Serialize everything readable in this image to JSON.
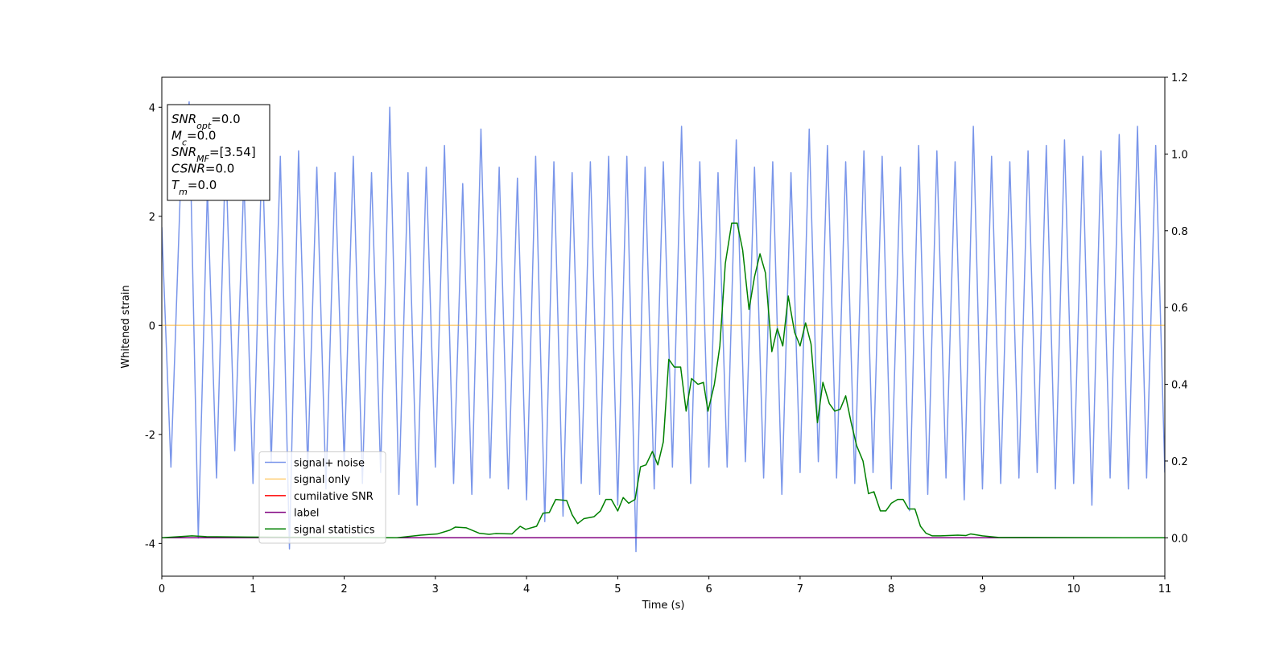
{
  "chart_data": {
    "type": "line",
    "xlabel": "Time (s)",
    "ylabel": "Whitened strain",
    "xlim": [
      0,
      11
    ],
    "xticks": [
      0,
      1,
      2,
      3,
      4,
      5,
      6,
      7,
      8,
      9,
      10,
      11
    ],
    "ylim": [
      -4.6,
      4.55
    ],
    "yticks": [
      -4,
      -2,
      0,
      2,
      4
    ],
    "y2lim": [
      -0.1,
      1.2
    ],
    "y2ticks": [
      {
        "value": 0,
        "label": "0.0"
      },
      0.2,
      0.4,
      0.6,
      0.8,
      {
        "value": 1,
        "label": "1.0"
      },
      1.2
    ],
    "grid": false,
    "legend": "lower left",
    "annotation": [
      {
        "name": "SNR",
        "sub": "opt",
        "text": "=0.0"
      },
      {
        "name": "M",
        "sub": "c",
        "text": "=0.0"
      },
      {
        "name": "SNR",
        "sub": "MF",
        "text": "=[3.54]"
      },
      {
        "name": "CSNR",
        "sub": "",
        "text": "=0.0"
      },
      {
        "name": "T",
        "sub": "m",
        "text": "=0.0"
      }
    ],
    "series": [
      {
        "name": "signal+ noise",
        "color": "royalblue",
        "alpha": 0.7,
        "x": [
          0,
          0.1,
          0.2,
          0.3,
          0.4,
          0.5,
          0.6,
          0.7,
          0.8,
          0.9,
          1,
          1.1,
          1.2,
          1.3,
          1.4,
          1.5,
          1.6,
          1.7,
          1.8,
          1.9,
          2,
          2.1,
          2.2,
          2.3,
          2.4,
          2.5,
          2.6,
          2.7,
          2.8,
          2.9,
          3,
          3.1,
          3.2,
          3.3,
          3.4,
          3.5,
          3.6,
          3.7,
          3.8,
          3.9,
          4,
          4.1,
          4.2,
          4.3,
          4.4,
          4.5,
          4.6,
          4.7,
          4.8,
          4.9,
          5,
          5.1,
          5.2,
          5.3,
          5.4,
          5.5,
          5.6,
          5.7,
          5.8,
          5.9,
          6,
          6.1,
          6.2,
          6.3,
          6.4,
          6.5,
          6.6,
          6.7,
          6.8,
          6.9,
          7,
          7.1,
          7.2,
          7.3,
          7.4,
          7.5,
          7.6,
          7.7,
          7.8,
          7.9,
          8,
          8.1,
          8.2,
          8.3,
          8.4,
          8.5,
          8.6,
          8.7,
          8.8,
          8.9,
          9,
          9.1,
          9.2,
          9.3,
          9.4,
          9.5,
          9.6,
          9.7,
          9.8,
          9.9,
          10,
          10.1,
          10.2,
          10.3,
          10.4,
          10.5,
          10.6,
          10.7,
          10.8,
          10.9,
          11
        ],
        "values": [
          1.8,
          -2.6,
          2.3,
          4.1,
          -3.9,
          2.5,
          -2.8,
          3.2,
          -2.3,
          2.7,
          -2.9,
          3.3,
          -2.5,
          3.1,
          -4.1,
          3.2,
          -2.6,
          2.9,
          -3.0,
          2.8,
          -2.5,
          3.1,
          -2.9,
          2.8,
          -2.7,
          4.0,
          -3.1,
          2.8,
          -3.3,
          2.9,
          -2.6,
          3.3,
          -2.9,
          2.6,
          -3.1,
          3.6,
          -2.8,
          2.9,
          -3.0,
          2.7,
          -3.2,
          3.1,
          -3.6,
          3.0,
          -3.5,
          2.8,
          -2.9,
          3.0,
          -3.1,
          3.1,
          -3.3,
          3.1,
          -4.15,
          2.9,
          -3.0,
          3.0,
          -2.6,
          3.65,
          -2.9,
          3.0,
          -2.6,
          2.8,
          -2.6,
          3.4,
          -2.5,
          2.9,
          -2.8,
          3.0,
          -3.1,
          2.8,
          -2.7,
          3.6,
          -2.5,
          3.3,
          -2.8,
          3.0,
          -2.9,
          3.2,
          -2.7,
          3.1,
          -3.0,
          2.9,
          -3.4,
          3.3,
          -3.1,
          3.2,
          -2.8,
          3.0,
          -3.2,
          3.65,
          -3.0,
          3.1,
          -2.9,
          3.0,
          -2.8,
          3.2,
          -2.7,
          3.3,
          -3.0,
          3.4,
          -2.9,
          3.1,
          -3.3,
          3.2,
          -2.8,
          3.5,
          -3.0,
          3.65,
          -2.8,
          3.3,
          -2.7
        ]
      },
      {
        "name": "signal only",
        "color": "orange",
        "alpha": 0.5,
        "x": [
          0,
          11
        ],
        "values": [
          0,
          0
        ]
      },
      {
        "name": "cumilative SNR",
        "color": "red",
        "alpha": 1,
        "axis": "y2",
        "x": [
          0,
          11
        ],
        "values": [
          0,
          0
        ]
      },
      {
        "name": "label",
        "color": "purple",
        "alpha": 1,
        "axis": "y2",
        "x": [
          0,
          11
        ],
        "values": [
          0,
          0
        ]
      },
      {
        "name": "signal statistics",
        "color": "green",
        "alpha": 1,
        "axis": "y2",
        "x": [
          0,
          0.33,
          0.49,
          0.94,
          2.57,
          2.84,
          3.02,
          3.16,
          3.22,
          3.34,
          3.48,
          3.59,
          3.66,
          3.84,
          3.93,
          3.99,
          4.11,
          4.18,
          4.25,
          4.32,
          4.44,
          4.5,
          4.56,
          4.63,
          4.74,
          4.81,
          4.87,
          4.93,
          5.0,
          5.06,
          5.12,
          5.19,
          5.25,
          5.31,
          5.38,
          5.44,
          5.5,
          5.56,
          5.62,
          5.69,
          5.75,
          5.81,
          5.88,
          5.94,
          5.99,
          6.06,
          6.12,
          6.18,
          6.25,
          6.31,
          6.37,
          6.44,
          6.5,
          6.56,
          6.62,
          6.69,
          6.75,
          6.81,
          6.87,
          6.94,
          7.0,
          7.06,
          7.12,
          7.19,
          7.25,
          7.32,
          7.38,
          7.44,
          7.5,
          7.56,
          7.62,
          7.69,
          7.75,
          7.81,
          7.88,
          7.94,
          8.0,
          8.07,
          8.13,
          8.19,
          8.26,
          8.32,
          8.38,
          8.45,
          8.54,
          8.73,
          8.82,
          8.87,
          9.0,
          9.18,
          11
        ],
        "values": [
          0,
          0.005,
          0.003,
          0.002,
          0,
          0.007,
          0.01,
          0.02,
          0.028,
          0.026,
          0.012,
          0.009,
          0.011,
          0.01,
          0.03,
          0.022,
          0.03,
          0.064,
          0.066,
          0.1,
          0.097,
          0.06,
          0.037,
          0.05,
          0.055,
          0.07,
          0.1,
          0.1,
          0.07,
          0.105,
          0.09,
          0.1,
          0.185,
          0.19,
          0.225,
          0.19,
          0.25,
          0.465,
          0.445,
          0.445,
          0.33,
          0.415,
          0.4,
          0.405,
          0.33,
          0.4,
          0.5,
          0.715,
          0.82,
          0.82,
          0.75,
          0.595,
          0.68,
          0.74,
          0.69,
          0.485,
          0.545,
          0.5,
          0.63,
          0.535,
          0.5,
          0.56,
          0.505,
          0.3,
          0.405,
          0.35,
          0.33,
          0.335,
          0.37,
          0.3,
          0.24,
          0.2,
          0.115,
          0.12,
          0.07,
          0.07,
          0.09,
          0.1,
          0.1,
          0.075,
          0.075,
          0.03,
          0.012,
          0.005,
          0.005,
          0.007,
          0.006,
          0.01,
          0.005,
          0.001,
          0
        ]
      }
    ]
  }
}
